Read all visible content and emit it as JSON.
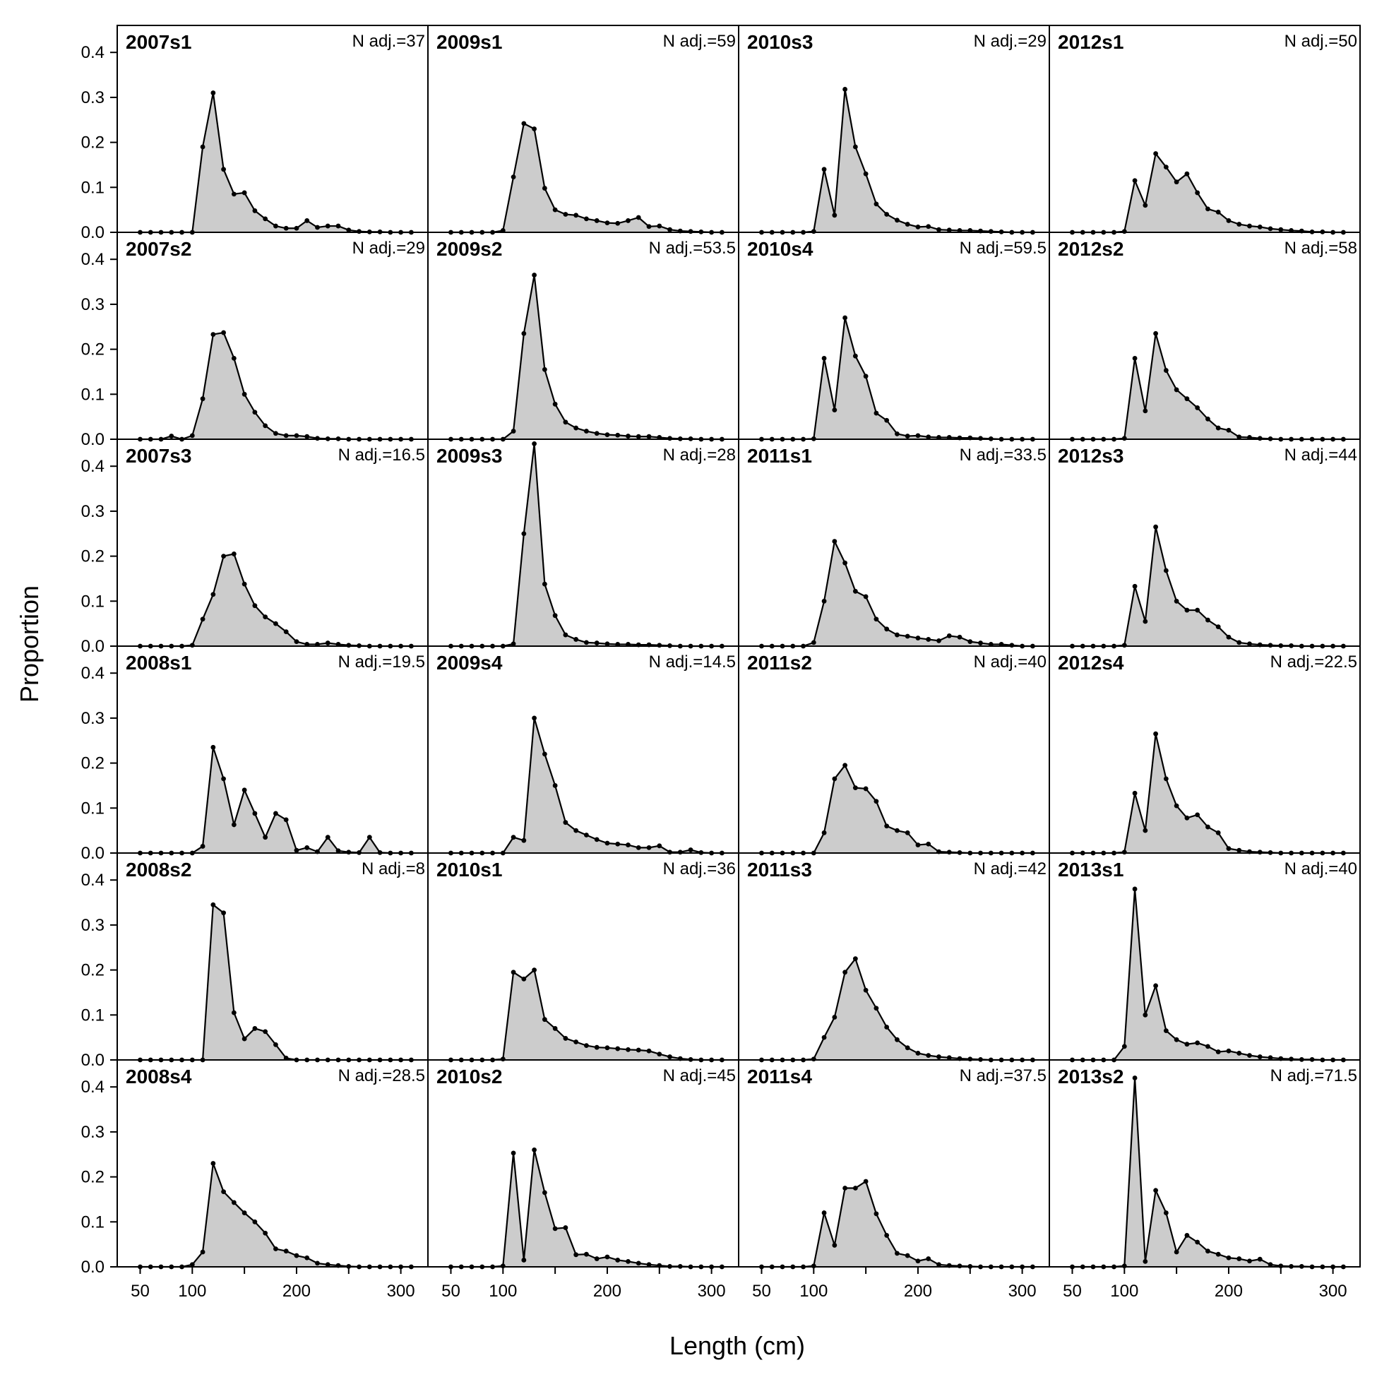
{
  "figure": {
    "xlabel": "Length (cm)",
    "ylabel": "Proportion"
  },
  "chart_data": {
    "type": "area",
    "layout": "grid of small multiples, 6 rows x 4 columns, read by column",
    "xlim": [
      28,
      326
    ],
    "ylim": [
      0,
      0.46
    ],
    "x_ticks": [
      50,
      100,
      200,
      300
    ],
    "y_ticks": [
      0.0,
      0.1,
      0.2,
      0.3,
      0.4
    ],
    "x_tick_labels": [
      "50",
      "100",
      "200",
      "300"
    ],
    "y_tick_labels": [
      "0.0",
      "0.1",
      "0.2",
      "0.3",
      "0.4"
    ],
    "x": [
      50,
      60,
      70,
      80,
      90,
      100,
      110,
      120,
      130,
      140,
      150,
      160,
      170,
      180,
      190,
      200,
      210,
      220,
      230,
      240,
      250,
      260,
      270,
      280,
      290,
      300,
      310
    ],
    "grid": false,
    "fill_color": "#cccccc",
    "line_color": "#000000",
    "panels": [
      {
        "title": "2007s1",
        "n_label": "N adj.=37",
        "values": [
          0,
          0,
          0,
          0,
          0,
          0,
          0.19,
          0.31,
          0.14,
          0.085,
          0.088,
          0.048,
          0.03,
          0.014,
          0.009,
          0.009,
          0.026,
          0.011,
          0.014,
          0.014,
          0.005,
          0.002,
          0.001,
          0.001,
          0,
          0,
          0
        ]
      },
      {
        "title": "2007s2",
        "n_label": "N adj.=29",
        "values": [
          0,
          0,
          0,
          0.007,
          0,
          0.008,
          0.09,
          0.233,
          0.237,
          0.18,
          0.1,
          0.06,
          0.03,
          0.013,
          0.008,
          0.008,
          0.006,
          0.002,
          0.001,
          0.001,
          0,
          0,
          0,
          0,
          0,
          0,
          0
        ]
      },
      {
        "title": "2007s3",
        "n_label": "N adj.=16.5",
        "values": [
          0,
          0,
          0,
          0,
          0,
          0.002,
          0.06,
          0.115,
          0.2,
          0.205,
          0.138,
          0.09,
          0.065,
          0.05,
          0.032,
          0.01,
          0.004,
          0.004,
          0.007,
          0.004,
          0.002,
          0.001,
          0,
          0,
          0,
          0,
          0
        ]
      },
      {
        "title": "2008s1",
        "n_label": "N adj.=19.5",
        "values": [
          0,
          0,
          0,
          0,
          0,
          0,
          0.015,
          0.235,
          0.165,
          0.063,
          0.14,
          0.088,
          0.035,
          0.088,
          0.074,
          0.006,
          0.012,
          0.003,
          0.035,
          0.005,
          0.002,
          0.001,
          0.035,
          0.001,
          0,
          0,
          0
        ]
      },
      {
        "title": "2008s2",
        "n_label": "N adj.=8",
        "values": [
          0,
          0,
          0,
          0,
          0,
          0,
          0,
          0.345,
          0.327,
          0.105,
          0.047,
          0.07,
          0.063,
          0.034,
          0.004,
          0,
          0,
          0,
          0,
          0,
          0,
          0,
          0,
          0,
          0,
          0,
          0
        ]
      },
      {
        "title": "2008s4",
        "n_label": "N adj.=28.5",
        "values": [
          0,
          0,
          0,
          0,
          0,
          0.005,
          0.033,
          0.23,
          0.167,
          0.143,
          0.12,
          0.1,
          0.075,
          0.04,
          0.035,
          0.025,
          0.02,
          0.008,
          0.005,
          0.003,
          0.001,
          0,
          0,
          0,
          0,
          0,
          0
        ]
      },
      {
        "title": "2009s1",
        "n_label": "N adj.=59",
        "values": [
          0,
          0,
          0,
          0,
          0,
          0.004,
          0.123,
          0.242,
          0.23,
          0.098,
          0.05,
          0.04,
          0.038,
          0.03,
          0.026,
          0.021,
          0.02,
          0.026,
          0.033,
          0.013,
          0.014,
          0.006,
          0.003,
          0.002,
          0.001,
          0,
          0
        ]
      },
      {
        "title": "2009s2",
        "n_label": "N adj.=53.5",
        "values": [
          0,
          0,
          0,
          0,
          0,
          0,
          0.018,
          0.235,
          0.365,
          0.155,
          0.078,
          0.038,
          0.025,
          0.018,
          0.013,
          0.01,
          0.009,
          0.007,
          0.006,
          0.006,
          0.004,
          0.002,
          0.001,
          0.001,
          0,
          0,
          0
        ]
      },
      {
        "title": "2009s3",
        "n_label": "N adj.=28",
        "values": [
          0,
          0,
          0,
          0,
          0,
          0,
          0.005,
          0.25,
          0.45,
          0.138,
          0.068,
          0.025,
          0.015,
          0.008,
          0.007,
          0.005,
          0.004,
          0.004,
          0.003,
          0.003,
          0.002,
          0.001,
          0,
          0,
          0,
          0,
          0
        ]
      },
      {
        "title": "2009s4",
        "n_label": "N adj.=14.5",
        "values": [
          0,
          0,
          0,
          0,
          0,
          0,
          0.035,
          0.028,
          0.3,
          0.22,
          0.15,
          0.068,
          0.05,
          0.04,
          0.03,
          0.022,
          0.02,
          0.018,
          0.012,
          0.012,
          0.016,
          0.002,
          0.002,
          0.007,
          0.001,
          0,
          0
        ]
      },
      {
        "title": "2010s1",
        "n_label": "N adj.=36",
        "values": [
          0,
          0,
          0,
          0,
          0,
          0.002,
          0.195,
          0.18,
          0.2,
          0.09,
          0.07,
          0.048,
          0.04,
          0.032,
          0.028,
          0.027,
          0.025,
          0.023,
          0.022,
          0.02,
          0.013,
          0.007,
          0.003,
          0.001,
          0,
          0,
          0
        ]
      },
      {
        "title": "2010s2",
        "n_label": "N adj.=45",
        "values": [
          0,
          0,
          0,
          0,
          0,
          0.002,
          0.253,
          0.015,
          0.26,
          0.165,
          0.085,
          0.087,
          0.027,
          0.028,
          0.018,
          0.022,
          0.015,
          0.012,
          0.008,
          0.005,
          0.003,
          0.001,
          0.001,
          0,
          0,
          0,
          0
        ]
      },
      {
        "title": "2010s3",
        "n_label": "N adj.=29",
        "values": [
          0,
          0,
          0,
          0,
          0,
          0.002,
          0.14,
          0.038,
          0.318,
          0.19,
          0.13,
          0.063,
          0.04,
          0.027,
          0.018,
          0.012,
          0.013,
          0.006,
          0.005,
          0.004,
          0.004,
          0.003,
          0.002,
          0.001,
          0,
          0,
          0
        ]
      },
      {
        "title": "2010s4",
        "n_label": "N adj.=59.5",
        "values": [
          0,
          0,
          0,
          0,
          0,
          0.001,
          0.18,
          0.065,
          0.27,
          0.185,
          0.14,
          0.058,
          0.042,
          0.012,
          0.007,
          0.008,
          0.005,
          0.004,
          0.004,
          0.003,
          0.003,
          0.002,
          0.001,
          0,
          0,
          0,
          0
        ]
      },
      {
        "title": "2011s1",
        "n_label": "N adj.=33.5",
        "values": [
          0,
          0,
          0,
          0,
          0,
          0.008,
          0.1,
          0.233,
          0.185,
          0.122,
          0.11,
          0.06,
          0.038,
          0.025,
          0.022,
          0.018,
          0.015,
          0.012,
          0.023,
          0.02,
          0.01,
          0.007,
          0.004,
          0.004,
          0.002,
          0,
          0
        ]
      },
      {
        "title": "2011s2",
        "n_label": "N adj.=40",
        "values": [
          0,
          0,
          0,
          0,
          0,
          0,
          0.045,
          0.165,
          0.195,
          0.145,
          0.143,
          0.115,
          0.06,
          0.05,
          0.045,
          0.018,
          0.02,
          0.003,
          0.002,
          0.001,
          0,
          0,
          0,
          0,
          0,
          0,
          0
        ]
      },
      {
        "title": "2011s3",
        "n_label": "N adj.=42",
        "values": [
          0,
          0,
          0,
          0,
          0,
          0.002,
          0.05,
          0.095,
          0.195,
          0.225,
          0.155,
          0.115,
          0.073,
          0.045,
          0.027,
          0.015,
          0.01,
          0.007,
          0.005,
          0.003,
          0.002,
          0.001,
          0,
          0,
          0,
          0,
          0
        ]
      },
      {
        "title": "2011s4",
        "n_label": "N adj.=37.5",
        "values": [
          0,
          0,
          0,
          0,
          0,
          0.002,
          0.12,
          0.048,
          0.175,
          0.175,
          0.19,
          0.118,
          0.07,
          0.03,
          0.025,
          0.013,
          0.018,
          0.005,
          0.003,
          0.002,
          0.001,
          0,
          0,
          0,
          0,
          0,
          0
        ]
      },
      {
        "title": "2012s1",
        "n_label": "N adj.=50",
        "values": [
          0,
          0,
          0,
          0,
          0,
          0.002,
          0.115,
          0.06,
          0.175,
          0.145,
          0.112,
          0.13,
          0.088,
          0.052,
          0.045,
          0.026,
          0.018,
          0.014,
          0.012,
          0.008,
          0.006,
          0.004,
          0.003,
          0.001,
          0.001,
          0,
          0
        ]
      },
      {
        "title": "2012s2",
        "n_label": "N adj.=58",
        "values": [
          0,
          0,
          0,
          0,
          0,
          0.002,
          0.18,
          0.063,
          0.235,
          0.153,
          0.11,
          0.09,
          0.07,
          0.045,
          0.025,
          0.02,
          0.005,
          0.004,
          0.002,
          0.001,
          0,
          0,
          0,
          0,
          0,
          0,
          0
        ]
      },
      {
        "title": "2012s3",
        "n_label": "N adj.=44",
        "values": [
          0,
          0,
          0,
          0,
          0,
          0.002,
          0.133,
          0.055,
          0.265,
          0.168,
          0.1,
          0.08,
          0.08,
          0.058,
          0.043,
          0.02,
          0.008,
          0.005,
          0.003,
          0.002,
          0.001,
          0.001,
          0,
          0,
          0,
          0,
          0
        ]
      },
      {
        "title": "2012s4",
        "n_label": "N adj.=22.5",
        "values": [
          0,
          0,
          0,
          0,
          0,
          0.002,
          0.133,
          0.05,
          0.265,
          0.165,
          0.105,
          0.078,
          0.085,
          0.058,
          0.045,
          0.01,
          0.006,
          0.003,
          0.002,
          0.001,
          0,
          0,
          0,
          0,
          0,
          0,
          0
        ]
      },
      {
        "title": "2013s1",
        "n_label": "N adj.=40",
        "values": [
          0,
          0,
          0,
          0,
          0,
          0.03,
          0.38,
          0.1,
          0.165,
          0.065,
          0.045,
          0.035,
          0.038,
          0.03,
          0.018,
          0.02,
          0.015,
          0.01,
          0.007,
          0.005,
          0.003,
          0.002,
          0.001,
          0.001,
          0,
          0,
          0
        ]
      },
      {
        "title": "2013s2",
        "n_label": "N adj.=71.5",
        "values": [
          0,
          0,
          0,
          0,
          0,
          0.002,
          0.42,
          0.012,
          0.17,
          0.12,
          0.033,
          0.07,
          0.055,
          0.035,
          0.028,
          0.02,
          0.018,
          0.013,
          0.017,
          0.005,
          0.002,
          0.001,
          0.001,
          0,
          0,
          0,
          0
        ]
      }
    ]
  }
}
